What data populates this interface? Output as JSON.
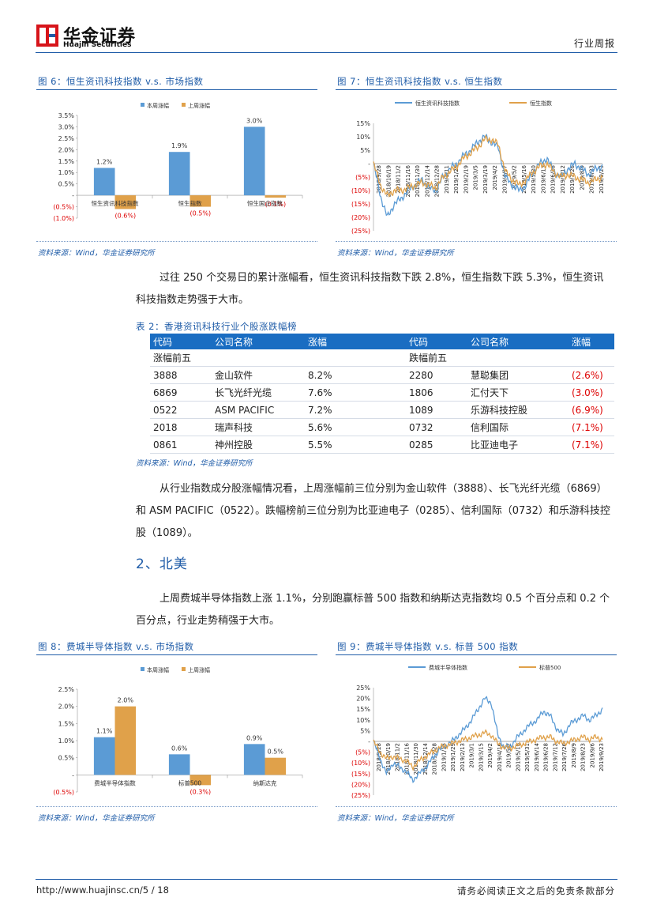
{
  "header": {
    "brand_cn": "华金证券",
    "brand_en": "Huajin Securities",
    "report_type": "行业周报"
  },
  "fig6": {
    "title": "图 6：恒生资讯科技指数 v.s. 市场指数",
    "source": "资料来源：Wind，华金证券研究所",
    "chart_data": {
      "type": "bar",
      "categories": [
        "恒生资讯科技指数",
        "恒生指数",
        "恒生国企指数"
      ],
      "series": [
        {
          "name": "本周涨幅",
          "values": [
            1.2,
            1.9,
            3.0
          ],
          "labels": [
            "1.2%",
            "1.9%",
            "3.0%"
          ]
        },
        {
          "name": "上周涨幅",
          "values": [
            -0.6,
            -0.5,
            -0.1
          ],
          "labels": [
            "(0.6%)",
            "(0.5%)",
            "(0.1%)"
          ]
        }
      ],
      "yticks": [
        "3.5%",
        "3.0%",
        "2.5%",
        "2.0%",
        "1.5%",
        "1.0%",
        "0.5%",
        "-",
        "(0.5%)",
        "(1.0%)"
      ],
      "ylim": [
        -1.0,
        3.5
      ],
      "colors": [
        "#5b9bd5",
        "#e0a14a"
      ],
      "legend_position": "top"
    }
  },
  "fig7": {
    "title": "图 7：恒生资讯科技指数 v.s. 恒生指数",
    "source": "资料来源：Wind，华金证券研究所",
    "chart_data": {
      "type": "line",
      "series": [
        {
          "name": "恒生资讯科技指数"
        },
        {
          "name": "恒生指数"
        }
      ],
      "yticks": [
        "15%",
        "10%",
        "5%",
        "-",
        "(5%)",
        "(10%)",
        "(15%)",
        "(20%)",
        "(25%)"
      ],
      "ylim": [
        -25,
        15
      ],
      "xticks": [
        "2018/9/28",
        "2018/10/19",
        "2018/11/2",
        "2018/11/16",
        "2018/11/30",
        "2018/12/14",
        "2018/12/28",
        "2019/1/11",
        "2019/1/25",
        "2019/2/19",
        "2019/3/5",
        "2019/3/19",
        "2019/4/2",
        "2019/4/17",
        "2019/5/2",
        "2019/5/16",
        "2019/5/30",
        "2019/6/13",
        "2019/6/28",
        "2019/7/12",
        "2019/7/26",
        "2019/8/9",
        "2019/8/23",
        "2019/9/23"
      ],
      "colors": [
        "#5b9bd5",
        "#e0a14a"
      ],
      "legend_position": "top"
    }
  },
  "para1": "过往 250 个交易日的累计涨幅看，恒生资讯科技指数下跌 2.8%，恒生指数下跌 5.3%，恒生资讯科技指数走势强于大市。",
  "table2": {
    "title": "表 2：香港资讯科技行业个股涨跌幅榜",
    "headers": [
      "代码",
      "公司名称",
      "涨幅",
      "代码",
      "公司名称",
      "涨幅"
    ],
    "group_left": "涨幅前五",
    "group_right": "跌幅前五",
    "rows": [
      [
        "3888",
        "金山软件",
        "8.2%",
        "2280",
        "慧聪集团",
        "(2.6%)"
      ],
      [
        "6869",
        "长飞光纤光缆",
        "7.6%",
        "1806",
        "汇付天下",
        "(3.0%)"
      ],
      [
        "0522",
        "ASM PACIFIC",
        "7.2%",
        "1089",
        "乐游科技控股",
        "(6.9%)"
      ],
      [
        "2018",
        "瑞声科技",
        "5.6%",
        "0732",
        "信利国际",
        "(7.1%)"
      ],
      [
        "0861",
        "神州控股",
        "5.5%",
        "0285",
        "比亚迪电子",
        "(7.1%)"
      ]
    ],
    "source": "资料来源：Wind，华金证券研究所"
  },
  "para2": "从行业指数成分股涨幅情况看，上周涨幅前三位分别为金山软件（3888）、长飞光纤光缆（6869）和 ASM PACIFIC（0522）。跌幅榜前三位分别为比亚迪电子（0285）、信利国际（0732）和乐游科技控股（1089）。",
  "section2": "2、北美",
  "para3": "上周费城半导体指数上涨 1.1%，分别跑赢标普 500 指数和纳斯达克指数均 0.5 个百分点和 0.2 个百分点，行业走势稍强于大市。",
  "fig8": {
    "title": "图 8：费城半导体指数 v.s. 市场指数",
    "source": "资料来源：Wind，华金证券研究所",
    "chart_data": {
      "type": "bar",
      "categories": [
        "费城半导体指数",
        "标普500",
        "纳斯达克"
      ],
      "series": [
        {
          "name": "本周涨幅",
          "values": [
            1.1,
            0.6,
            0.9
          ],
          "labels": [
            "1.1%",
            "0.6%",
            "0.9%"
          ]
        },
        {
          "name": "上周涨幅",
          "values": [
            2.0,
            -0.3,
            0.5
          ],
          "labels": [
            "2.0%",
            "(0.3%)",
            "0.5%"
          ]
        }
      ],
      "yticks": [
        "2.5%",
        "2.0%",
        "1.5%",
        "1.0%",
        "0.5%",
        "-",
        "(0.5%)"
      ],
      "ylim": [
        -0.5,
        2.5
      ],
      "colors": [
        "#5b9bd5",
        "#e0a14a"
      ],
      "legend_position": "top"
    }
  },
  "fig9": {
    "title": "图 9：费城半导体指数 v.s. 标普 500 指数",
    "source": "资料来源：Wind，华金证券研究所",
    "chart_data": {
      "type": "line",
      "series": [
        {
          "name": "费城半导体指数"
        },
        {
          "name": "标普500"
        }
      ],
      "yticks": [
        "25%",
        "20%",
        "15%",
        "10%",
        "5%",
        "-",
        "(5%)",
        "(10%)",
        "(15%)",
        "(20%)",
        "(25%)"
      ],
      "ylim": [
        -25,
        25
      ],
      "xticks": [
        "2018/9/28",
        "2018/10/19",
        "2018/11/2",
        "2018/11/16",
        "2018/11/30",
        "2018/12/14",
        "2018/12/28",
        "2019/1/15",
        "2019/1/29",
        "2019/2/13",
        "2019/3/1",
        "2019/3/15",
        "2019/4/2",
        "2019/4/16",
        "2019/5/2",
        "2019/5/16",
        "2019/5/31",
        "2019/6/14",
        "2019/6/28",
        "2019/7/12",
        "2019/7/26",
        "2019/8/9",
        "2019/8/23",
        "2019/9/6",
        "2019/9/23"
      ],
      "colors": [
        "#5b9bd5",
        "#e0a14a"
      ],
      "legend_position": "top"
    }
  },
  "footer": {
    "url_page": "http://www.huajinsc.cn/5 / 18",
    "disclaimer": "请务必阅读正文之后的免责条款部分"
  }
}
